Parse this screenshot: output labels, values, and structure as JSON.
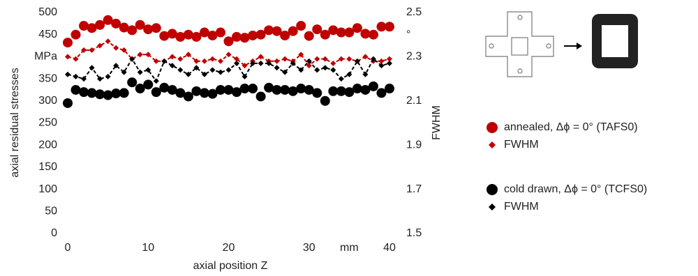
{
  "chart_data": {
    "type": "line",
    "x_label": "axial position Z",
    "y_label": "axial residual stresses",
    "y2_label": "FWHM",
    "x": [
      0,
      1,
      2,
      3,
      4,
      5,
      6,
      7,
      8,
      9,
      10,
      11,
      12,
      13,
      14,
      15,
      16,
      17,
      18,
      19,
      20,
      21,
      22,
      23,
      24,
      25,
      26,
      27,
      28,
      29,
      30,
      31,
      32,
      33,
      34,
      35,
      36,
      37,
      38,
      39,
      40
    ],
    "xlim": [
      0,
      40
    ],
    "xticks": [
      0,
      10,
      20,
      30,
      {
        "value": 35,
        "label": "mm"
      },
      40
    ],
    "ylim": [
      0,
      500
    ],
    "yticks": [
      0,
      50,
      100,
      150,
      200,
      250,
      300,
      350,
      {
        "value": 400,
        "label": "MPa"
      },
      450,
      500
    ],
    "y2lim": [
      1.5,
      2.5
    ],
    "y2ticks": [
      1.5,
      1.7,
      1.9,
      2.1,
      2.3,
      {
        "value": 2.4,
        "label": "°"
      },
      2.5
    ],
    "grid": false,
    "series": [
      {
        "name": "annealed, Δϕ = 0° (TAFS0)",
        "color": "#c00000",
        "marker": "circle",
        "dashed": false,
        "values": [
          432,
          450,
          470,
          465,
          472,
          483,
          475,
          466,
          460,
          472,
          462,
          465,
          447,
          452,
          445,
          450,
          445,
          455,
          448,
          455,
          435,
          445,
          443,
          448,
          450,
          460,
          458,
          448,
          458,
          470,
          447,
          462,
          450,
          460,
          455,
          455,
          465,
          452,
          450,
          468,
          468
        ]
      },
      {
        "name": "FWHM",
        "color": "#c00000",
        "marker": "diamond",
        "dashed": true,
        "axis": "y2",
        "values": [
          2.3,
          2.29,
          2.33,
          2.33,
          2.35,
          2.37,
          2.34,
          2.33,
          2.29,
          2.31,
          2.31,
          2.28,
          2.28,
          2.3,
          2.29,
          2.31,
          2.28,
          2.28,
          2.29,
          2.28,
          2.31,
          2.29,
          2.26,
          2.28,
          2.3,
          2.28,
          2.28,
          2.29,
          2.28,
          2.31,
          2.26,
          2.29,
          2.29,
          2.27,
          2.29,
          2.29,
          2.28,
          2.3,
          2.28,
          2.28,
          2.29
        ]
      },
      {
        "name": "cold drawn, Δϕ = 0° (TCFS0)",
        "color": "#000000",
        "marker": "circle",
        "dashed": false,
        "values": [
          295,
          325,
          320,
          318,
          315,
          313,
          317,
          318,
          342,
          328,
          337,
          320,
          330,
          325,
          318,
          310,
          322,
          318,
          316,
          325,
          325,
          320,
          328,
          328,
          310,
          330,
          325,
          325,
          322,
          328,
          325,
          318,
          300,
          322,
          322,
          320,
          328,
          325,
          333,
          318,
          328
        ]
      },
      {
        "name": "FWHM",
        "color": "#000000",
        "marker": "diamond",
        "dashed": true,
        "axis": "y2",
        "values": [
          2.22,
          2.21,
          2.2,
          2.25,
          2.2,
          2.21,
          2.26,
          2.23,
          2.29,
          2.23,
          2.24,
          2.19,
          2.28,
          2.26,
          2.24,
          2.22,
          2.25,
          2.22,
          2.24,
          2.23,
          2.24,
          2.27,
          2.21,
          2.27,
          2.27,
          2.27,
          2.25,
          2.23,
          2.27,
          2.24,
          2.28,
          2.24,
          2.25,
          2.24,
          2.2,
          2.22,
          2.28,
          2.22,
          2.29,
          2.26,
          2.27
        ]
      }
    ]
  }
}
